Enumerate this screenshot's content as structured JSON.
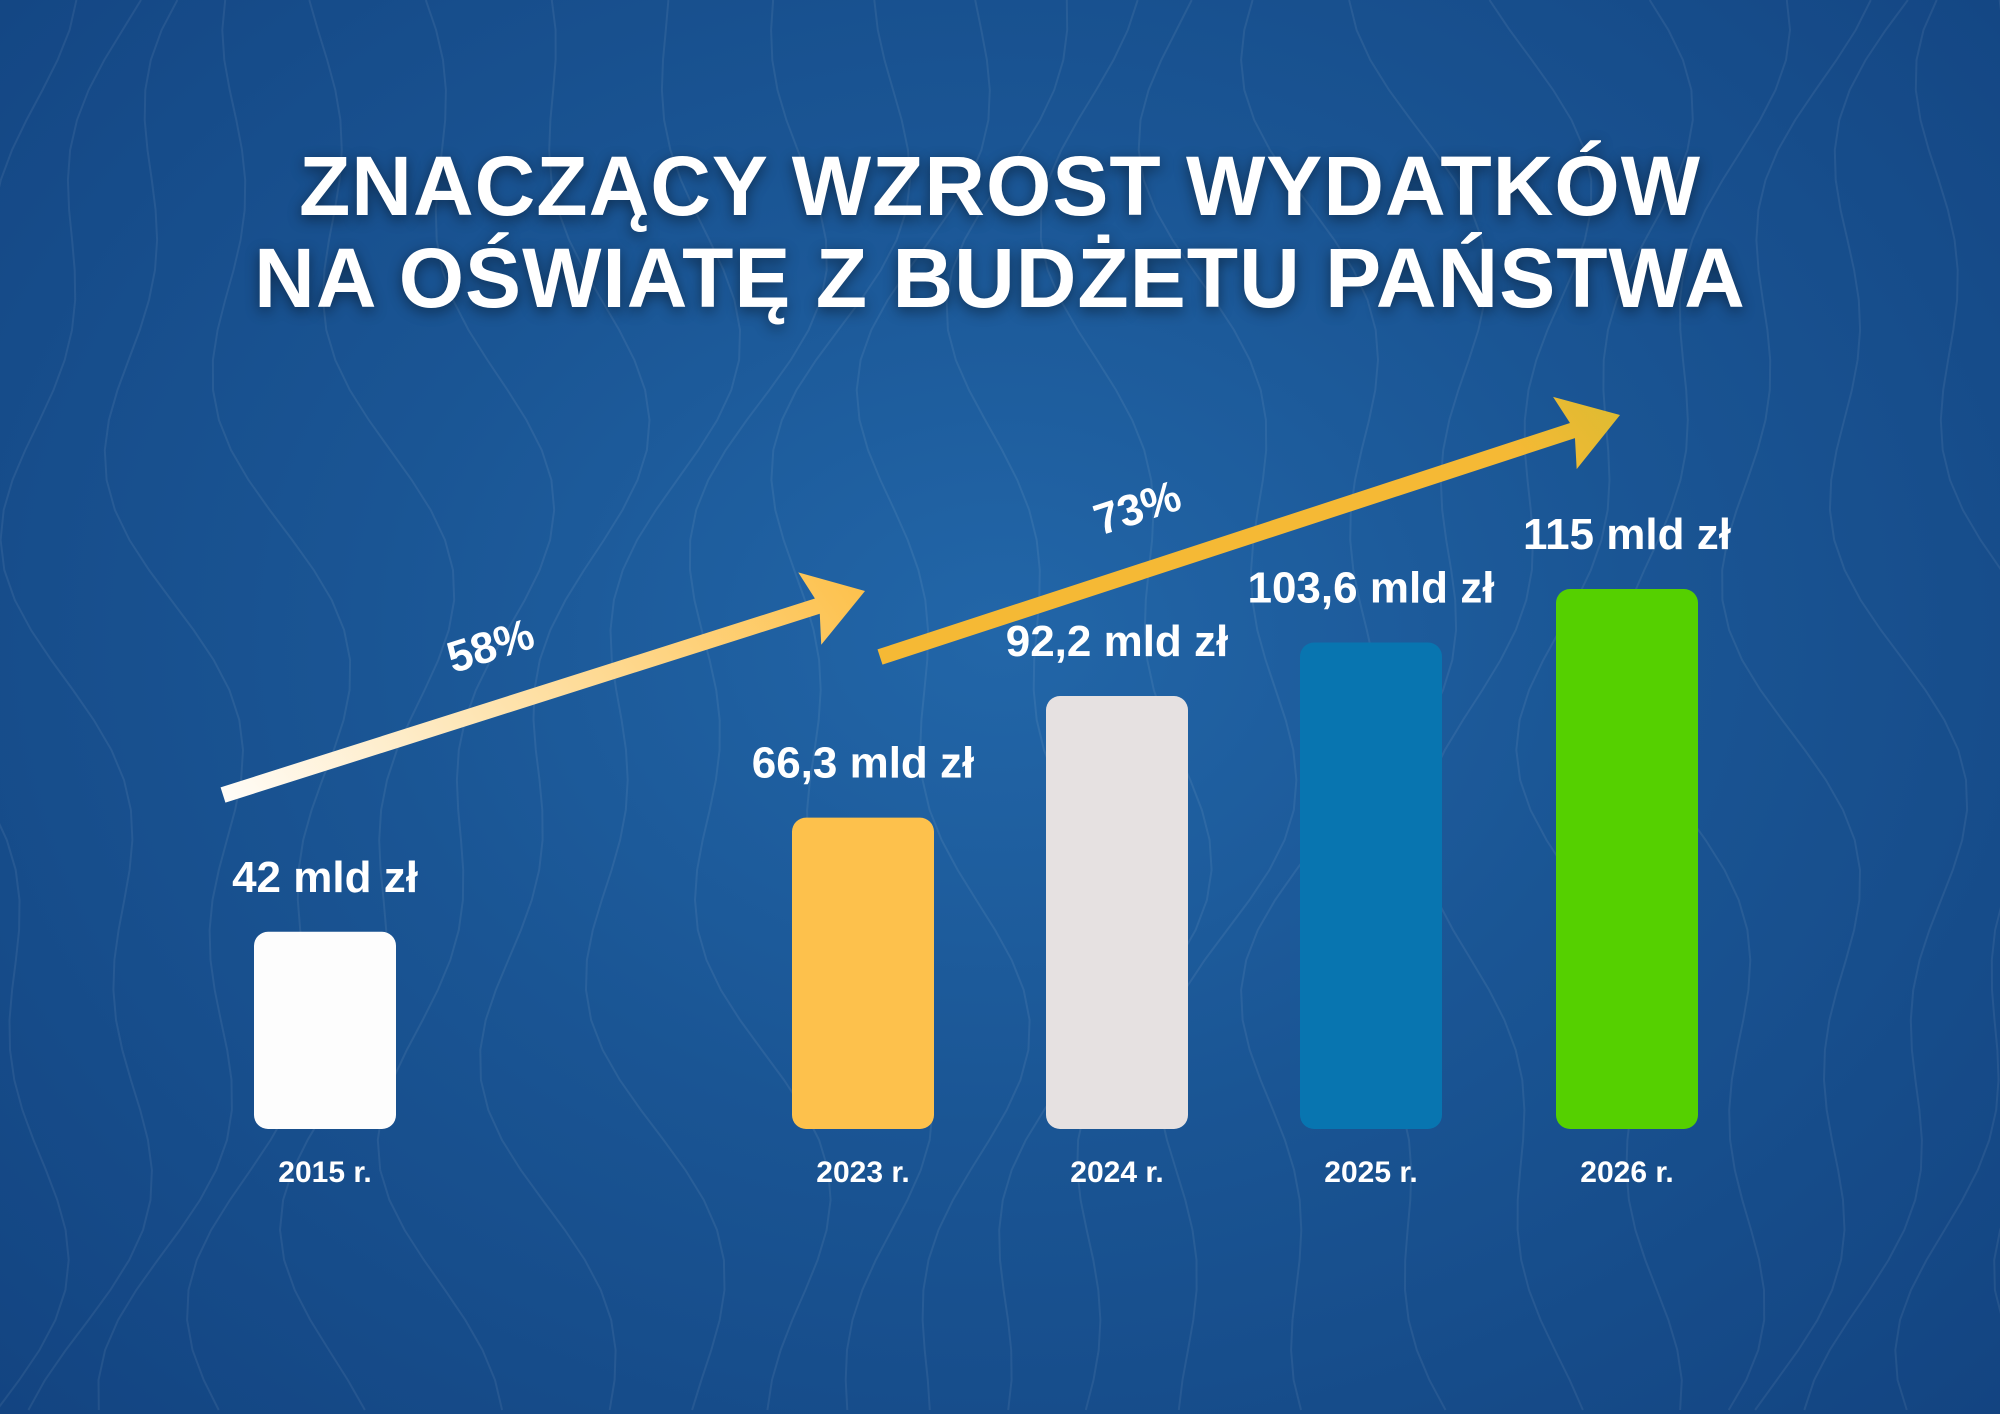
{
  "title": {
    "line1": "ZNACZĄCY WZROST WYDATKÓW",
    "line2": "NA OŚWIATĘ Z BUDŻETU PAŃSTWA"
  },
  "chart_data": {
    "type": "bar",
    "title": "ZNACZĄCY WZROST WYDATKÓW NA OŚWIATĘ Z BUDŻETU PAŃSTWA",
    "xlabel": "",
    "ylabel": "",
    "unit": "mld zł",
    "categories": [
      "2015 r.",
      "2023 r.",
      "2024 r.",
      "2025 r.",
      "2026 r."
    ],
    "values": [
      42,
      66.3,
      92.2,
      103.6,
      115
    ],
    "value_labels": [
      "42 mld zł",
      "66,3 mld zł",
      "92,2 mld zł",
      "103,6 mld zł",
      "115 mld zł"
    ],
    "colors": [
      "#fdfdfd",
      "#fdc14c",
      "#e6e1e1",
      "#0875b0",
      "#55d000"
    ],
    "ylim": [
      0,
      115
    ],
    "grid": false,
    "annotations": [
      {
        "text": "58%",
        "from": "2015 r.",
        "to": "2023 r.",
        "colors": [
          "#ffffff",
          "#fdc14c"
        ]
      },
      {
        "text": "73%",
        "from": "2023 r.",
        "to": "2026 r.",
        "colors": [
          "#f5b935",
          "#55c81a"
        ]
      }
    ]
  }
}
